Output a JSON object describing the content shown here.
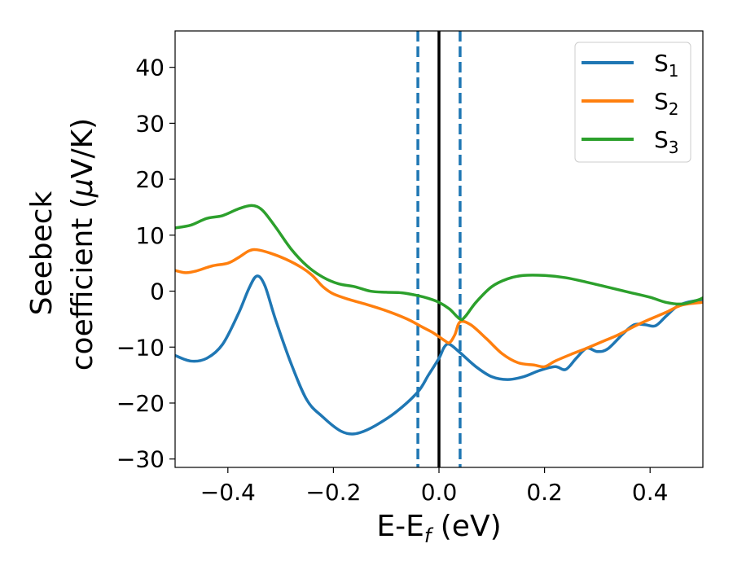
{
  "chart_data": {
    "type": "line",
    "xlabel": {
      "main": "E-E",
      "sub": "f",
      "suffix": " (eV)"
    },
    "ylabel": {
      "line1": "Seebeck",
      "line2_prefix": "coefficient  (",
      "mu": "μ",
      "line2_suffix": "V/K)"
    },
    "xlim": [
      -0.5,
      0.5
    ],
    "ylim": [
      -31.5,
      46.5
    ],
    "xticks": [
      {
        "value": -0.4,
        "label": "−0.4"
      },
      {
        "value": -0.2,
        "label": "−0.2"
      },
      {
        "value": 0.0,
        "label": "0.0"
      },
      {
        "value": 0.2,
        "label": "0.2"
      },
      {
        "value": 0.4,
        "label": "0.4"
      }
    ],
    "yticks": [
      {
        "value": 40,
        "label": "40"
      },
      {
        "value": 30,
        "label": "30"
      },
      {
        "value": 20,
        "label": "20"
      },
      {
        "value": 10,
        "label": "10"
      },
      {
        "value": 0,
        "label": "0"
      },
      {
        "value": -10,
        "label": "−10"
      },
      {
        "value": -20,
        "label": "−20"
      },
      {
        "value": -30,
        "label": "−30"
      }
    ],
    "vlines": [
      {
        "x": -0.04,
        "color": "#1f77b4",
        "style": "dashed"
      },
      {
        "x": 0.04,
        "color": "#1f77b4",
        "style": "dashed"
      },
      {
        "x": 0.0,
        "color": "#000000",
        "style": "solid"
      }
    ],
    "legend": {
      "location": "top-right"
    },
    "series": [
      {
        "name": "S",
        "sub": "1",
        "color": "#1f77b4",
        "points": [
          [
            -0.5,
            -11.5
          ],
          [
            -0.47,
            -12.5
          ],
          [
            -0.44,
            -12
          ],
          [
            -0.41,
            -9.5
          ],
          [
            -0.38,
            -4
          ],
          [
            -0.36,
            0.5
          ],
          [
            -0.345,
            2.7
          ],
          [
            -0.33,
            1
          ],
          [
            -0.31,
            -5
          ],
          [
            -0.28,
            -13
          ],
          [
            -0.25,
            -19.5
          ],
          [
            -0.22,
            -22.5
          ],
          [
            -0.19,
            -24.8
          ],
          [
            -0.17,
            -25.5
          ],
          [
            -0.15,
            -25.3
          ],
          [
            -0.12,
            -24
          ],
          [
            -0.08,
            -21.5
          ],
          [
            -0.04,
            -18
          ],
          [
            -0.02,
            -15
          ],
          [
            0.0,
            -12
          ],
          [
            0.01,
            -10
          ],
          [
            0.02,
            -9.5
          ],
          [
            0.04,
            -11
          ],
          [
            0.07,
            -13.5
          ],
          [
            0.1,
            -15.3
          ],
          [
            0.13,
            -15.8
          ],
          [
            0.16,
            -15.3
          ],
          [
            0.19,
            -14.2
          ],
          [
            0.22,
            -13.5
          ],
          [
            0.24,
            -14
          ],
          [
            0.26,
            -12
          ],
          [
            0.28,
            -10.2
          ],
          [
            0.3,
            -10.8
          ],
          [
            0.32,
            -10.3
          ],
          [
            0.35,
            -7.5
          ],
          [
            0.37,
            -6
          ],
          [
            0.39,
            -6
          ],
          [
            0.41,
            -6.2
          ],
          [
            0.43,
            -4.5
          ],
          [
            0.45,
            -2.8
          ],
          [
            0.47,
            -2
          ],
          [
            0.5,
            -1.5
          ]
        ]
      },
      {
        "name": "S",
        "sub": "2",
        "color": "#ff7f0e",
        "points": [
          [
            -0.5,
            3.7
          ],
          [
            -0.48,
            3.3
          ],
          [
            -0.46,
            3.6
          ],
          [
            -0.43,
            4.5
          ],
          [
            -0.4,
            5
          ],
          [
            -0.38,
            6
          ],
          [
            -0.36,
            7.2
          ],
          [
            -0.345,
            7.4
          ],
          [
            -0.32,
            6.8
          ],
          [
            -0.29,
            5.7
          ],
          [
            -0.26,
            4.2
          ],
          [
            -0.24,
            2.8
          ],
          [
            -0.22,
            0.8
          ],
          [
            -0.2,
            -0.5
          ],
          [
            -0.17,
            -1.5
          ],
          [
            -0.14,
            -2.3
          ],
          [
            -0.1,
            -3.5
          ],
          [
            -0.06,
            -5
          ],
          [
            -0.03,
            -6.5
          ],
          [
            -0.01,
            -7.5
          ],
          [
            0.01,
            -8.8
          ],
          [
            0.02,
            -9.2
          ],
          [
            0.03,
            -7.8
          ],
          [
            0.04,
            -5.5
          ],
          [
            0.06,
            -6
          ],
          [
            0.09,
            -8.5
          ],
          [
            0.12,
            -11.2
          ],
          [
            0.15,
            -12.8
          ],
          [
            0.18,
            -13.2
          ],
          [
            0.2,
            -13.5
          ],
          [
            0.22,
            -12.5
          ],
          [
            0.25,
            -11.3
          ],
          [
            0.28,
            -10.2
          ],
          [
            0.31,
            -9
          ],
          [
            0.34,
            -7.8
          ],
          [
            0.37,
            -6.3
          ],
          [
            0.4,
            -5
          ],
          [
            0.43,
            -3.8
          ],
          [
            0.46,
            -2.5
          ],
          [
            0.5,
            -2
          ]
        ]
      },
      {
        "name": "S",
        "sub": "3",
        "color": "#2ca02c",
        "points": [
          [
            -0.5,
            11.3
          ],
          [
            -0.47,
            11.8
          ],
          [
            -0.44,
            13
          ],
          [
            -0.41,
            13.5
          ],
          [
            -0.38,
            14.7
          ],
          [
            -0.355,
            15.3
          ],
          [
            -0.335,
            14.5
          ],
          [
            -0.31,
            11.5
          ],
          [
            -0.28,
            7.5
          ],
          [
            -0.25,
            4.5
          ],
          [
            -0.22,
            2.5
          ],
          [
            -0.19,
            1.3
          ],
          [
            -0.16,
            0.8
          ],
          [
            -0.13,
            0
          ],
          [
            -0.1,
            -0.2
          ],
          [
            -0.07,
            -0.3
          ],
          [
            -0.04,
            -0.8
          ],
          [
            -0.02,
            -1.3
          ],
          [
            0.0,
            -2
          ],
          [
            0.02,
            -3.2
          ],
          [
            0.04,
            -5
          ],
          [
            0.05,
            -4.5
          ],
          [
            0.07,
            -2
          ],
          [
            0.1,
            0.8
          ],
          [
            0.13,
            2.2
          ],
          [
            0.16,
            2.8
          ],
          [
            0.2,
            2.8
          ],
          [
            0.24,
            2.4
          ],
          [
            0.28,
            1.6
          ],
          [
            0.32,
            0.7
          ],
          [
            0.36,
            -0.2
          ],
          [
            0.4,
            -1.1
          ],
          [
            0.43,
            -2
          ],
          [
            0.46,
            -2.3
          ],
          [
            0.49,
            -1.6
          ],
          [
            0.5,
            -1.2
          ]
        ]
      }
    ]
  }
}
